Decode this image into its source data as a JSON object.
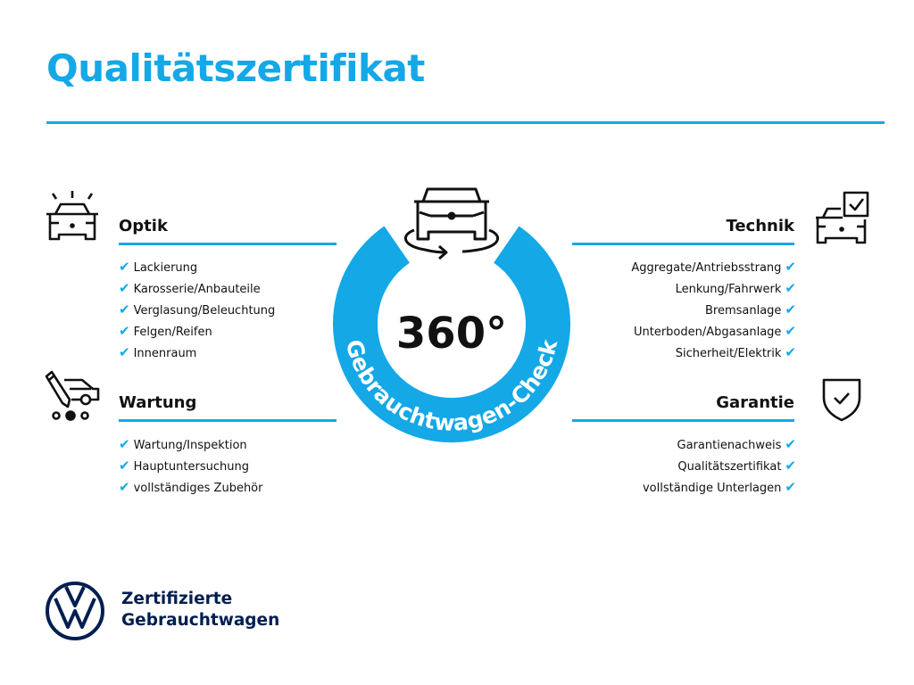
{
  "title": "Qualitätszertifikat",
  "colors": {
    "accent": "#14a8e6",
    "navy": "#001e50",
    "text": "#111111"
  },
  "center": {
    "degrees": "360°",
    "ring_text": "Gebrauchtwagen-Check",
    "icon": "car-rotate-360-icon"
  },
  "sections": {
    "optik": {
      "heading": "Optik",
      "icon": "car-lights-icon",
      "items": [
        "Lackierung",
        "Karosserie/Anbauteile",
        "Verglasung/Beleuchtung",
        "Felgen/Reifen",
        "Innenraum"
      ]
    },
    "wartung": {
      "heading": "Wartung",
      "icon": "service-van-pen-icon",
      "items": [
        "Wartung/Inspektion",
        "Hauptuntersuchung",
        "vollständiges Zubehör"
      ]
    },
    "technik": {
      "heading": "Technik",
      "icon": "car-checkbox-icon",
      "items": [
        "Aggregate/Antriebsstrang",
        "Lenkung/Fahrwerk",
        "Bremsanlage",
        "Unterboden/Abgasanlage",
        "Sicherheit/Elektrik"
      ]
    },
    "garantie": {
      "heading": "Garantie",
      "icon": "shield-check-icon",
      "items": [
        "Garantienachweis",
        "Qualitätszertifikat",
        "vollständige Unterlagen"
      ]
    }
  },
  "check_mark": "✔",
  "logo": {
    "brand": "VW",
    "line1": "Zertifizierte",
    "line2": "Gebrauchtwagen"
  }
}
